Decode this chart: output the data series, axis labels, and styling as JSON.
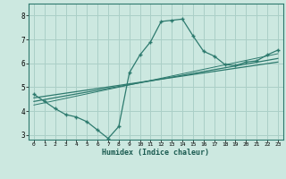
{
  "xlabel": "Humidex (Indice chaleur)",
  "bg_color": "#cce8e0",
  "plot_bg_color": "#cce8e0",
  "line_color": "#2d7a6e",
  "grid_color": "#aacfc7",
  "xlim": [
    -0.5,
    23.5
  ],
  "ylim": [
    2.8,
    8.5
  ],
  "xticks": [
    0,
    1,
    2,
    3,
    4,
    5,
    6,
    7,
    8,
    9,
    10,
    11,
    12,
    13,
    14,
    15,
    16,
    17,
    18,
    19,
    20,
    21,
    22,
    23
  ],
  "yticks": [
    3,
    4,
    5,
    6,
    7,
    8
  ],
  "curve_x": [
    0,
    1,
    2,
    3,
    4,
    5,
    6,
    7,
    8,
    9,
    10,
    11,
    12,
    13,
    14,
    15,
    16,
    17,
    18,
    19,
    20,
    21,
    22,
    23
  ],
  "curve_y": [
    4.7,
    4.4,
    4.1,
    3.85,
    3.75,
    3.55,
    3.2,
    2.85,
    3.35,
    5.6,
    6.35,
    6.9,
    7.75,
    7.8,
    7.85,
    7.15,
    6.5,
    6.3,
    5.95,
    5.9,
    6.05,
    6.1,
    6.35,
    6.55
  ],
  "line1_x": [
    0,
    23
  ],
  "line1_y": [
    4.55,
    6.05
  ],
  "line2_x": [
    0,
    23
  ],
  "line2_y": [
    4.4,
    6.2
  ],
  "line3_x": [
    0,
    23
  ],
  "line3_y": [
    4.25,
    6.4
  ]
}
